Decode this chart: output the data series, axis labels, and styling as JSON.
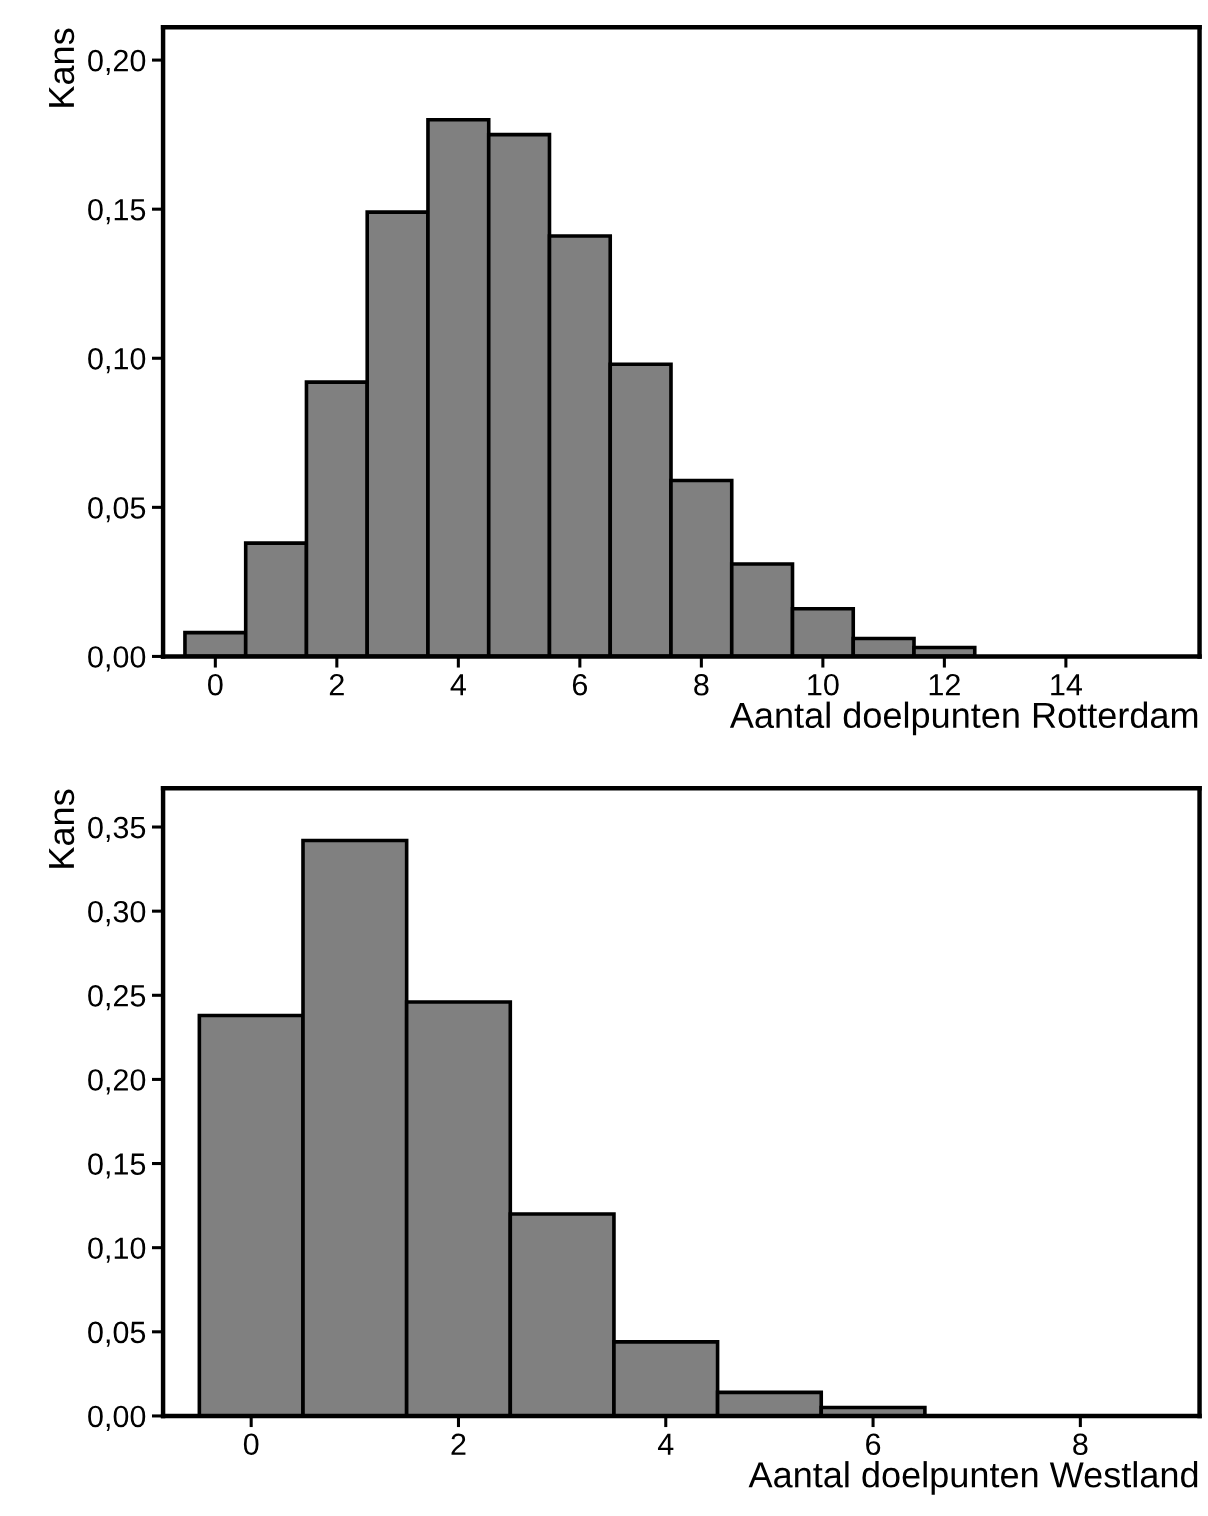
{
  "chart_data": [
    {
      "type": "histogram",
      "xlabel": "Aantal doelpunten Rotterdam",
      "ylabel": "Kans",
      "color": "#808080",
      "bins": [
        -0.5,
        0.5,
        1.5,
        2.5,
        3.5,
        4.5,
        5.5,
        6.5,
        7.5,
        8.5,
        9.5,
        10.5,
        11.5,
        12.5
      ],
      "values": [
        0.008,
        0.038,
        0.092,
        0.149,
        0.18,
        0.175,
        0.141,
        0.098,
        0.059,
        0.031,
        0.016,
        0.006,
        0.003
      ],
      "xlim": [
        -0.86,
        16.2
      ],
      "ylim": [
        0,
        0.211
      ],
      "xticks": [
        0,
        2,
        4,
        6,
        8,
        10,
        12,
        14
      ],
      "yticks": [
        {
          "value": 0,
          "label": "0,00"
        },
        {
          "value": 0.05,
          "label": "0,05"
        },
        {
          "value": 0.1,
          "label": "0,10"
        },
        {
          "value": 0.15,
          "label": "0,15"
        },
        {
          "value": 0.2,
          "label": "0,20"
        }
      ]
    },
    {
      "type": "histogram",
      "xlabel": "Aantal doelpunten Westland",
      "ylabel": "Kans",
      "color": "#808080",
      "bins": [
        -0.5,
        0.5,
        1.5,
        2.5,
        3.5,
        4.5,
        5.5,
        6.5
      ],
      "values": [
        0.238,
        0.342,
        0.246,
        0.12,
        0.044,
        0.014,
        0.005
      ],
      "xlim": [
        -0.85,
        9.15
      ],
      "ylim": [
        0,
        0.373
      ],
      "xticks": [
        0,
        2,
        4,
        6,
        8
      ],
      "yticks": [
        {
          "value": 0,
          "label": "0,00"
        },
        {
          "value": 0.05,
          "label": "0,05"
        },
        {
          "value": 0.1,
          "label": "0,10"
        },
        {
          "value": 0.15,
          "label": "0,15"
        },
        {
          "value": 0.2,
          "label": "0,20"
        },
        {
          "value": 0.25,
          "label": "0,25"
        },
        {
          "value": 0.3,
          "label": "0,30"
        },
        {
          "value": 0.35,
          "label": "0,35"
        }
      ]
    }
  ]
}
